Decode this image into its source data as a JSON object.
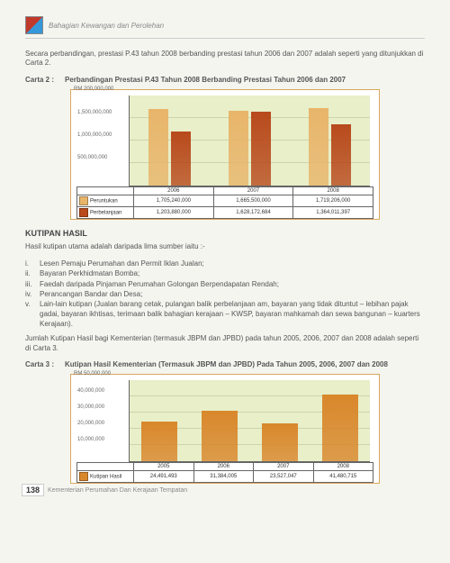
{
  "header": {
    "section": "Bahagian Kewangan dan Perolehan"
  },
  "intro": "Secara perbandingan, prestasi P.43 tahun 2008 berbanding prestasi tahun 2006 dan 2007 adalah seperti yang ditunjukkan di Carta 2.",
  "chart2": {
    "label": "Carta 2 :",
    "title": "Perbandingan Prestasi P.43 Tahun 2008 Berbanding Prestasi Tahun 2006 dan 2007",
    "type": "bar",
    "ylabel": "RM 200,000,000",
    "ylim": [
      0,
      2000000000
    ],
    "yticks": [
      {
        "v": 500000000,
        "label": "500,000,000"
      },
      {
        "v": 1000000000,
        "label": "1,000,000,000"
      },
      {
        "v": 1500000000,
        "label": "1,500,000,000"
      }
    ],
    "categories": [
      "2006",
      "2007",
      "2008"
    ],
    "series": [
      {
        "name": "Peruntukan",
        "color": "#e8b56a",
        "values": [
          1705240000,
          1665500000,
          1719206000
        ],
        "labels": [
          "1,705,240,000",
          "1,665,500,000",
          "1,719,206,000"
        ]
      },
      {
        "name": "Perbelanjaan",
        "color": "#b84a1c",
        "values": [
          1203880000,
          1628172684,
          1364011397
        ],
        "labels": [
          "1,203,880,000",
          "1,628,172,684",
          "1,364,011,397"
        ]
      }
    ],
    "background": "#e8efc9",
    "grid_color": "#cbd4aa",
    "border": "#d9a85e"
  },
  "kutipan": {
    "heading": "KUTIPAN HASIL",
    "lead": "Hasil kutipan utama adalah daripada lima sumber iaitu :-",
    "items": [
      {
        "n": "i.",
        "t": "Lesen Pemaju Perumahan dan Permit Iklan Jualan;"
      },
      {
        "n": "ii.",
        "t": "Bayaran Perkhidmatan Bomba;"
      },
      {
        "n": "iii.",
        "t": "Faedah daripada Pinjaman Perumahan Golongan Berpendapatan Rendah;"
      },
      {
        "n": "iv.",
        "t": "Perancangan Bandar dan Desa;"
      },
      {
        "n": "v.",
        "t": "Lain-lain kutipan (Jualan barang cetak, pulangan balik perbelanjaan am, bayaran yang tidak dituntut – lebihan pajak gadai, bayaran ikhtisas, terimaan balik bahagian kerajaan – KWSP, bayaran mahkamah dan sewa bangunan – kuarters Kerajaan)."
      }
    ],
    "summary": "Jumlah Kutipan Hasil bagi Kementerian (termasuk JBPM dan JPBD) pada tahun 2005, 2006, 2007 dan 2008 adalah seperti di Carta 3."
  },
  "chart3": {
    "label": "Carta 3 :",
    "title": "Kutipan Hasil Kementerian (Termasuk JBPM dan JPBD) Pada Tahun 2005, 2006, 2007 dan 2008",
    "type": "bar",
    "ylabel": "RM 50,000,000",
    "ylim": [
      0,
      50000000
    ],
    "yticks": [
      {
        "v": 10000000,
        "label": "10,000,000"
      },
      {
        "v": 20000000,
        "label": "20,000,000"
      },
      {
        "v": 30000000,
        "label": "30,000,000"
      },
      {
        "v": 40000000,
        "label": "40,000,000"
      }
    ],
    "categories": [
      "2005",
      "2006",
      "2007",
      "2008"
    ],
    "series": [
      {
        "name": "Kutipan Hasil",
        "color": "#d9872b",
        "values": [
          24491493,
          31384005,
          23527047,
          41480715
        ],
        "labels": [
          "24,491,493",
          "31,384,005",
          "23,527,047",
          "41,480,715"
        ]
      }
    ],
    "background": "#e8efc9",
    "grid_color": "#cbd4aa",
    "border": "#d9a85e"
  },
  "footer": {
    "page": "138",
    "text": "Kementerian Perumahan Dan Kerajaan Tempatan"
  }
}
